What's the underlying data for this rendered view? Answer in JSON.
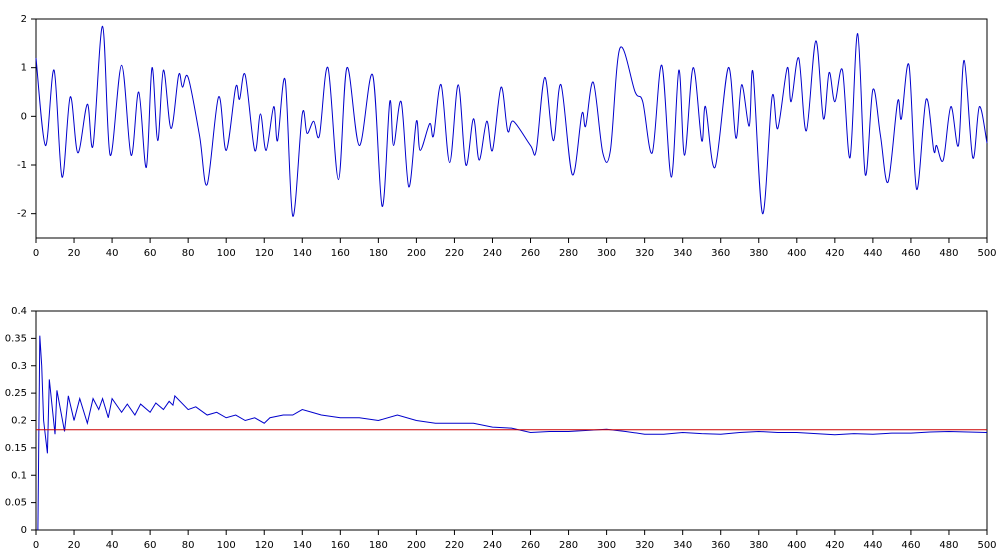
{
  "chart_data": [
    {
      "type": "line",
      "smooth": true,
      "xlim": [
        0,
        500
      ],
      "xticks": [
        0,
        20,
        40,
        60,
        80,
        100,
        120,
        140,
        160,
        180,
        200,
        220,
        240,
        260,
        280,
        300,
        320,
        340,
        360,
        380,
        400,
        420,
        440,
        460,
        480,
        500
      ],
      "ylim": [
        -2.5,
        2
      ],
      "yticks": [
        -2,
        -1,
        0,
        1,
        2
      ],
      "series": [
        {
          "color": "#0000cc",
          "x": [
            0,
            5,
            9.5,
            13.7,
            18,
            22,
            27,
            30,
            35,
            39,
            45,
            50,
            54,
            58,
            61,
            64,
            67,
            71,
            75,
            77,
            80,
            86,
            90,
            96,
            100,
            105,
            107,
            110,
            115,
            118,
            121,
            125,
            127,
            131,
            135,
            140,
            142.5,
            146,
            149,
            153.5,
            159,
            163.5,
            170,
            177,
            182,
            186,
            188,
            192,
            196,
            200,
            202,
            207,
            209,
            213,
            217.5,
            222,
            226,
            230,
            233,
            237,
            240,
            244.5,
            248,
            251,
            260,
            263,
            267.5,
            272,
            276,
            282,
            287,
            289,
            293,
            298,
            302,
            307,
            315,
            319,
            324,
            329,
            334,
            338,
            341,
            345.5,
            350,
            352,
            357,
            364,
            368,
            371,
            375,
            377,
            382,
            387,
            390,
            395,
            397,
            401,
            405,
            410,
            414,
            417,
            420,
            424,
            428,
            432,
            436,
            440,
            444,
            448,
            453,
            455,
            459,
            463,
            468,
            472,
            473.5,
            477,
            481,
            485,
            488,
            492.5,
            496,
            500
          ],
          "values": [
            1.2,
            -0.6,
            0.95,
            -1.25,
            0.4,
            -0.75,
            0.25,
            -0.6,
            1.85,
            -0.8,
            1.05,
            -0.8,
            0.5,
            -1.05,
            1.0,
            -0.5,
            0.95,
            -0.25,
            0.85,
            0.6,
            0.8,
            -0.4,
            -1.4,
            0.4,
            -0.7,
            0.6,
            0.35,
            0.85,
            -0.7,
            0.05,
            -0.7,
            0.2,
            -0.5,
            0.75,
            -2.05,
            0.05,
            -0.35,
            -0.1,
            -0.4,
            1.0,
            -1.3,
            1.0,
            -0.6,
            0.85,
            -1.85,
            0.3,
            -0.6,
            0.3,
            -1.45,
            -0.1,
            -0.7,
            -0.15,
            -0.4,
            0.65,
            -0.95,
            0.65,
            -1.0,
            -0.05,
            -0.9,
            -0.1,
            -0.7,
            0.6,
            -0.3,
            -0.1,
            -0.6,
            -0.7,
            0.8,
            -0.5,
            0.65,
            -1.2,
            0.05,
            -0.2,
            0.7,
            -0.75,
            -0.7,
            1.4,
            0.5,
            0.3,
            -0.75,
            1.05,
            -1.25,
            0.95,
            -0.8,
            1.0,
            -0.5,
            0.2,
            -1.05,
            1.0,
            -0.45,
            0.65,
            -0.2,
            0.9,
            -2.0,
            0.4,
            -0.25,
            1.0,
            0.3,
            1.2,
            -0.3,
            1.55,
            -0.05,
            0.9,
            0.3,
            0.95,
            -0.85,
            1.7,
            -1.2,
            0.55,
            -0.4,
            -1.35,
            0.3,
            -0.05,
            1.05,
            -1.5,
            0.35,
            -0.7,
            -0.6,
            -0.9,
            0.2,
            -0.6,
            1.15,
            -0.85,
            0.2,
            -0.55
          ]
        }
      ]
    },
    {
      "type": "line",
      "smooth": false,
      "xlim": [
        0,
        500
      ],
      "xticks": [
        0,
        20,
        40,
        60,
        80,
        100,
        120,
        140,
        160,
        180,
        200,
        220,
        240,
        260,
        280,
        300,
        320,
        340,
        360,
        380,
        400,
        420,
        440,
        460,
        480,
        500
      ],
      "ylim": [
        0,
        0.4
      ],
      "yticks": [
        0,
        0.05,
        0.1,
        0.15,
        0.2,
        0.25,
        0.3,
        0.35,
        0.4
      ],
      "series": [
        {
          "color": "#0000cc",
          "x": [
            1,
            2,
            3,
            4,
            6,
            7,
            10,
            11,
            15,
            17,
            20,
            23,
            27,
            30,
            33,
            35,
            38,
            40,
            45,
            48,
            52,
            55,
            60,
            63,
            67,
            70,
            72,
            73,
            80,
            84,
            90,
            95,
            100,
            105,
            110,
            115,
            120,
            123,
            130,
            135,
            140,
            145,
            150,
            160,
            170,
            180,
            190,
            200,
            210,
            220,
            230,
            240,
            250,
            260,
            270,
            280,
            290,
            300,
            310,
            320,
            330,
            340,
            350,
            360,
            370,
            380,
            390,
            400,
            410,
            420,
            430,
            440,
            450,
            460,
            470,
            480,
            490,
            500
          ],
          "values": [
            0,
            0.355,
            0.3,
            0.2,
            0.14,
            0.275,
            0.175,
            0.255,
            0.18,
            0.245,
            0.2,
            0.24,
            0.195,
            0.24,
            0.22,
            0.24,
            0.205,
            0.24,
            0.215,
            0.23,
            0.21,
            0.23,
            0.215,
            0.232,
            0.22,
            0.235,
            0.228,
            0.245,
            0.22,
            0.225,
            0.21,
            0.215,
            0.205,
            0.21,
            0.2,
            0.205,
            0.195,
            0.205,
            0.21,
            0.21,
            0.22,
            0.215,
            0.21,
            0.205,
            0.205,
            0.2,
            0.21,
            0.2,
            0.195,
            0.195,
            0.195,
            0.188,
            0.186,
            0.178,
            0.18,
            0.18,
            0.182,
            0.184,
            0.18,
            0.175,
            0.175,
            0.178,
            0.176,
            0.175,
            0.178,
            0.18,
            0.178,
            0.178,
            0.176,
            0.174,
            0.176,
            0.175,
            0.177,
            0.177,
            0.179,
            0.18,
            0.179,
            0.178
          ]
        },
        {
          "color": "#cc0000",
          "x": [
            0,
            500
          ],
          "values": [
            0.183,
            0.183
          ]
        }
      ]
    }
  ]
}
